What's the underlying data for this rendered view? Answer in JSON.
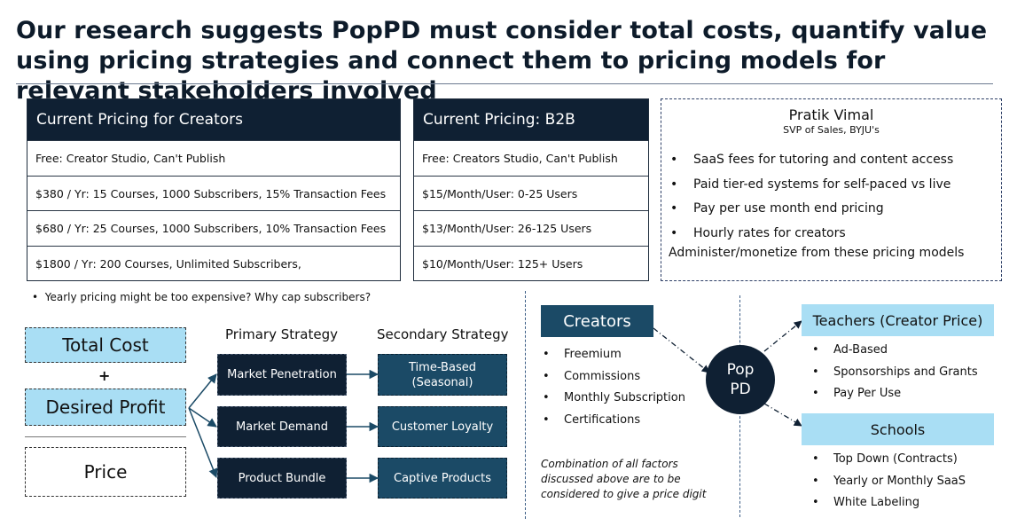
{
  "title": "Our research suggests PopPD must consider total costs, quantify value using pricing strategies and connect them to pricing models for relevant stakeholders involved",
  "creators_table": {
    "header": "Current Pricing for Creators",
    "rows": [
      "Free: Creator Studio, Can't Publish",
      "$380 / Yr: 15 Courses, 1000 Subscribers, 15% Transaction Fees",
      "$680 / Yr: 25 Courses, 1000 Subscribers, 10% Transaction Fees",
      "$1800 / Yr: 200 Courses, Unlimited Subscribers,"
    ]
  },
  "b2b_table": {
    "header": "Current Pricing: B2B",
    "rows": [
      "Free: Creators Studio, Can't Publish",
      "$15/Month/User: 0-25 Users",
      "$13/Month/User: 26-125 Users",
      "$10/Month/User: 125+ Users"
    ]
  },
  "quote": {
    "name": "Pratik Vimal",
    "role": "SVP of Sales, BYJU's",
    "bullets": [
      "SaaS fees for tutoring and content access",
      "Paid tier-ed systems for self-paced vs live",
      "Pay per use month end pricing",
      "Hourly rates for creators"
    ],
    "closing": "Administer/monetize from these pricing models"
  },
  "bullet_glyph": "•",
  "note": "Yearly pricing might be too expensive? Why cap subscribers?",
  "cost_diagram": {
    "total_cost": "Total Cost",
    "plus": "+",
    "desired_profit": "Desired Profit",
    "price": "Price",
    "primary_heading": "Primary Strategy",
    "secondary_heading": "Secondary Strategy",
    "primary": [
      "Market Penetration",
      "Market Demand",
      "Product Bundle"
    ],
    "secondary_1": "Time-Based",
    "secondary_1b": "(Seasonal)",
    "secondary": [
      "Customer Loyalty",
      "Captive Products"
    ]
  },
  "model_diagram": {
    "creators": "Creators",
    "creators_items": [
      "Freemium",
      "Commissions",
      "Monthly Subscription",
      "Certifications"
    ],
    "note": "Combination of all factors discussed above are to be considered to give a price digit",
    "hub_line1": "Pop",
    "hub_line2": "PD",
    "teachers": "Teachers (Creator Price)",
    "teachers_items": [
      "Ad-Based",
      "Sponsorships and Grants",
      "Pay Per Use"
    ],
    "schools": "Schools",
    "schools_items": [
      "Top Down (Contracts)",
      "Yearly or Monthly SaaS",
      "White Labeling"
    ]
  },
  "colors": {
    "navy": "#0f2033",
    "teal": "#1b4a66",
    "light_blue": "#a9def4"
  }
}
